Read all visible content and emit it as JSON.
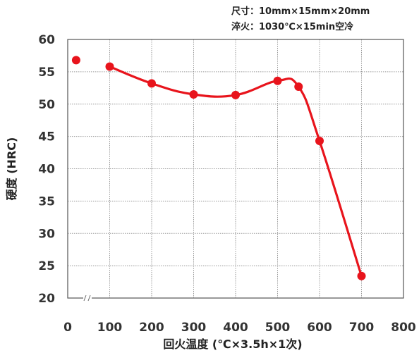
{
  "chart_data": {
    "type": "line",
    "xlabel": "回火温度 (℃×3.5h×1次)",
    "ylabel": "硬度 (HRC)",
    "annotations": [
      "尺寸：10mm×15mm×20mm",
      "淬火：1030℃×15min空冷"
    ],
    "xlim": [
      0,
      800
    ],
    "ylim": [
      20,
      60
    ],
    "x_ticks": [
      "0",
      "100",
      "200",
      "300",
      "400",
      "500",
      "600",
      "700",
      "800"
    ],
    "y_ticks": [
      "20",
      "25",
      "30",
      "35",
      "40",
      "45",
      "50",
      "55",
      "60"
    ],
    "grid": true,
    "axis_break": "x",
    "series": [
      {
        "color": "#e8141c",
        "standalone_points": [
          {
            "x": 20,
            "y": 56.8
          }
        ],
        "points": [
          {
            "x": 100,
            "y": 55.8
          },
          {
            "x": 200,
            "y": 53.2
          },
          {
            "x": 300,
            "y": 51.5
          },
          {
            "x": 400,
            "y": 51.4
          },
          {
            "x": 500,
            "y": 53.6
          },
          {
            "x": 550,
            "y": 52.7
          },
          {
            "x": 600,
            "y": 44.3
          },
          {
            "x": 700,
            "y": 23.4
          }
        ]
      }
    ]
  }
}
